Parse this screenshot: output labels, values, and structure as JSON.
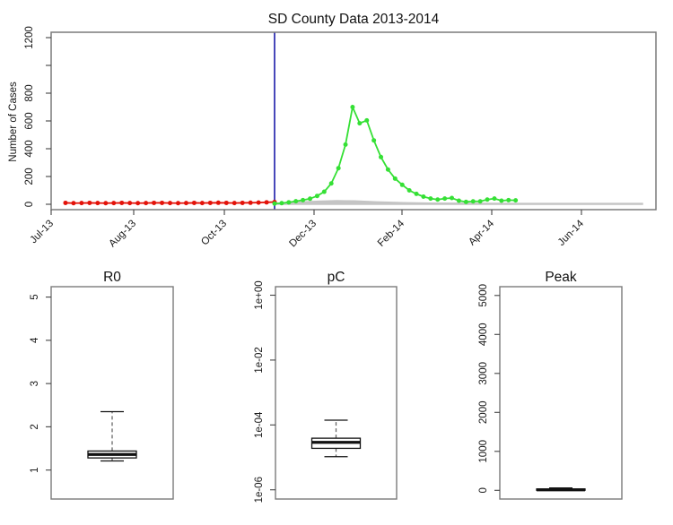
{
  "colors": {
    "background": "#ffffff",
    "observed_red": "#e31209",
    "forecast_green": "#35e035",
    "vline_blue": "#3434b2",
    "band_gray": "#c4c4c4",
    "box_frame_gray": "#7a7a7a",
    "tick_mark": "#444444",
    "boxplot_black": "#111111",
    "whisker_dash": "#666666",
    "label_text": "#1a1a1a"
  },
  "chart_data": [
    {
      "type": "line",
      "title": "SD County Data 2013-2014",
      "xlabel": "",
      "ylabel": "Number of Cases",
      "ylim": [
        0,
        1270
      ],
      "grid": false,
      "legend": "none",
      "yticks": [
        {
          "v": 0,
          "label": "0"
        },
        {
          "v": 200,
          "label": "200"
        },
        {
          "v": 400,
          "label": "400"
        },
        {
          "v": 600,
          "label": "600"
        },
        {
          "v": 800,
          "label": "800"
        },
        {
          "v": 1000,
          "label": ""
        },
        {
          "v": 1200,
          "label": "1200"
        }
      ],
      "xticks": [
        {
          "f": 0.0,
          "label": "Jul-13"
        },
        {
          "f": 0.1365,
          "label": "Aug-13"
        },
        {
          "f": 0.2864,
          "label": "Oct-13"
        },
        {
          "f": 0.4347,
          "label": "Dec-13"
        },
        {
          "f": 0.5801,
          "label": "Feb-14"
        },
        {
          "f": 0.7285,
          "label": "Apr-14"
        },
        {
          "f": 0.8768,
          "label": "Jun-14"
        }
      ],
      "vline": {
        "f": 0.3694,
        "color_key": "vline_blue"
      },
      "band": {
        "name": "simulation-band",
        "x_f": [
          0.3694,
          0.3872,
          0.4125,
          0.4421,
          0.4718,
          0.5015,
          0.5386,
          0.5831,
          0.6276,
          0.687,
          0.7611,
          0.865,
          0.9777
        ],
        "upper": [
          3,
          9,
          16,
          22,
          26,
          24,
          17,
          11,
          8,
          7,
          6,
          6,
          6
        ],
        "lower": [
          0,
          0,
          0,
          0,
          0,
          0,
          0,
          0,
          0,
          0,
          0,
          0,
          0
        ]
      },
      "series": [
        {
          "name": "observed-cases",
          "color_key": "observed_red",
          "x_f": [
            0.0237,
            0.037,
            0.0503,
            0.0636,
            0.0769,
            0.0902,
            0.1035,
            0.1168,
            0.1301,
            0.1434,
            0.1567,
            0.17,
            0.1833,
            0.1966,
            0.2099,
            0.2232,
            0.2365,
            0.2498,
            0.2631,
            0.2764,
            0.2897,
            0.303,
            0.3163,
            0.3296,
            0.3429,
            0.3562,
            0.3694
          ],
          "values": [
            10,
            8,
            9,
            10,
            9,
            8,
            9,
            10,
            9,
            8,
            9,
            10,
            10,
            9,
            8,
            9,
            10,
            9,
            10,
            11,
            10,
            9,
            10,
            11,
            12,
            14,
            16
          ]
        },
        {
          "name": "forecast-cases",
          "color_key": "forecast_green",
          "x_f": [
            0.3694,
            0.3812,
            0.3929,
            0.4046,
            0.4163,
            0.4281,
            0.4398,
            0.4515,
            0.4632,
            0.475,
            0.4867,
            0.4984,
            0.5101,
            0.5219,
            0.5336,
            0.5453,
            0.557,
            0.5687,
            0.5805,
            0.5922,
            0.6039,
            0.6156,
            0.6274,
            0.6391,
            0.6508,
            0.6625,
            0.6742,
            0.686,
            0.6977,
            0.7094,
            0.7211,
            0.7329,
            0.7446,
            0.7563,
            0.768
          ],
          "values": [
            5,
            8,
            14,
            22,
            30,
            40,
            60,
            90,
            150,
            260,
            430,
            700,
            583,
            604,
            460,
            340,
            250,
            185,
            140,
            100,
            75,
            55,
            41,
            34,
            41,
            45,
            26,
            17,
            21,
            21,
            34,
            41,
            26,
            30,
            28
          ]
        }
      ]
    },
    {
      "type": "box",
      "title": "R0",
      "log": false,
      "ylim": [
        0.33,
        5.24
      ],
      "yticks": [
        {
          "v": 1,
          "label": "1"
        },
        {
          "v": 2,
          "label": "2"
        },
        {
          "v": 3,
          "label": "3"
        },
        {
          "v": 4,
          "label": "4"
        },
        {
          "v": 5,
          "label": "5"
        }
      ],
      "box": {
        "whisker_low": 1.21,
        "q1": 1.28,
        "median": 1.36,
        "q3": 1.44,
        "whisker_high": 2.35
      }
    },
    {
      "type": "box",
      "title": "pC",
      "log": true,
      "ylim": [
        5.2e-07,
        1.83
      ],
      "yticks": [
        {
          "v": 1e-06,
          "label": "1e-06"
        },
        {
          "v": 0.0001,
          "label": "1e-04"
        },
        {
          "v": 0.01,
          "label": "1e-02"
        },
        {
          "v": 1,
          "label": "1e+00"
        }
      ],
      "box": {
        "whisker_low": 1.05e-05,
        "q1": 1.9e-05,
        "median": 2.9e-05,
        "q3": 3.9e-05,
        "whisker_high": 0.00014
      }
    },
    {
      "type": "box",
      "title": "Peak",
      "log": false,
      "ylim": [
        -223,
        5225
      ],
      "yticks": [
        {
          "v": 0,
          "label": "0"
        },
        {
          "v": 1000,
          "label": "1000"
        },
        {
          "v": 2000,
          "label": "2000"
        },
        {
          "v": 3000,
          "label": "3000"
        },
        {
          "v": 4000,
          "label": "4000"
        },
        {
          "v": 5000,
          "label": "5000"
        }
      ],
      "box": {
        "whisker_low": 0,
        "q1": 2,
        "median": 12,
        "q3": 35,
        "whisker_high": 60
      }
    }
  ]
}
